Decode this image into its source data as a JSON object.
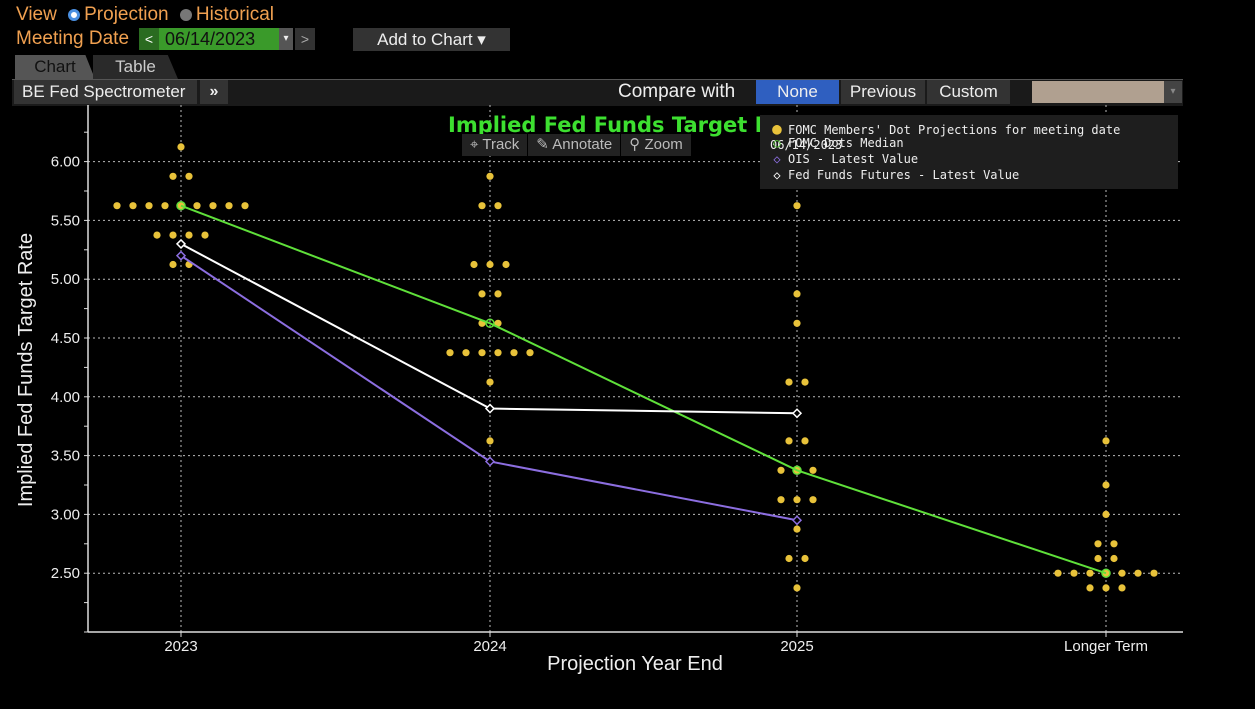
{
  "header": {
    "view_label": "View",
    "projection_label": "Projection",
    "historical_label": "Historical",
    "meeting_date_label": "Meeting Date",
    "meeting_date_value": "06/14/2023",
    "prev_icon": "<",
    "next_icon": ">",
    "add_to_chart_label": "Add to Chart ▾"
  },
  "tabs": [
    "Chart",
    "Table"
  ],
  "toolbar": {
    "spectrometer_label": "BE Fed Spectrometer",
    "more_icon": "»",
    "compare_label": "Compare with",
    "compare_options": [
      "None",
      "Previous",
      "Custom"
    ],
    "selected_compare": "None"
  },
  "chart_tools": [
    "Track",
    "Annotate",
    "Zoom"
  ],
  "legend": [
    {
      "label": "FOMC Members' Dot Projections for meeting date 06/14/2023",
      "marker": "dot",
      "color": "#e8c23a"
    },
    {
      "label": "FOMC Dots Median",
      "marker": "circle",
      "color": "#5fe03a"
    },
    {
      "label": "OIS - Latest Value",
      "marker": "diamond",
      "color": "#8c6ee0"
    },
    {
      "label": "Fed Funds Futures - Latest Value",
      "marker": "diamond",
      "color": "#ffffff"
    }
  ],
  "colors": {
    "dots": "#e8c23a",
    "median": "#5fe03a",
    "ois": "#8c6ee0",
    "futures": "#ffffff",
    "title": "#3de030"
  },
  "chart_data": {
    "type": "scatter",
    "title": "Implied Fed Funds Target Rate",
    "xlabel": "Projection Year End",
    "ylabel": "Implied Fed Funds Target Rate",
    "categories": [
      "2023",
      "2024",
      "2025",
      "Longer Term"
    ],
    "ylim": [
      2.0,
      6.5
    ],
    "yticks": [
      "2.50",
      "3.00",
      "3.50",
      "4.00",
      "4.50",
      "5.00",
      "5.50",
      "6.00"
    ],
    "grid": true,
    "legend_position": "top-right",
    "dots": [
      {
        "category": "2023",
        "counts": [
          {
            "y": 6.125,
            "n": 1
          },
          {
            "y": 5.875,
            "n": 2
          },
          {
            "y": 5.625,
            "n": 9
          },
          {
            "y": 5.375,
            "n": 4
          },
          {
            "y": 5.125,
            "n": 2
          }
        ]
      },
      {
        "category": "2024",
        "counts": [
          {
            "y": 5.875,
            "n": 1
          },
          {
            "y": 5.625,
            "n": 2
          },
          {
            "y": 5.125,
            "n": 3
          },
          {
            "y": 4.875,
            "n": 2
          },
          {
            "y": 4.625,
            "n": 2
          },
          {
            "y": 4.375,
            "n": 6
          },
          {
            "y": 4.125,
            "n": 1
          },
          {
            "y": 3.625,
            "n": 1
          }
        ]
      },
      {
        "category": "2025",
        "counts": [
          {
            "y": 5.625,
            "n": 1
          },
          {
            "y": 4.875,
            "n": 1
          },
          {
            "y": 4.625,
            "n": 1
          },
          {
            "y": 4.125,
            "n": 2
          },
          {
            "y": 3.625,
            "n": 2
          },
          {
            "y": 3.375,
            "n": 3
          },
          {
            "y": 3.125,
            "n": 3
          },
          {
            "y": 2.875,
            "n": 1
          },
          {
            "y": 2.625,
            "n": 2
          },
          {
            "y": 2.375,
            "n": 1
          }
        ]
      },
      {
        "category": "Longer Term",
        "counts": [
          {
            "y": 3.625,
            "n": 1
          },
          {
            "y": 3.25,
            "n": 1
          },
          {
            "y": 3.0,
            "n": 1
          },
          {
            "y": 2.75,
            "n": 2
          },
          {
            "y": 2.625,
            "n": 2
          },
          {
            "y": 2.5,
            "n": 7
          },
          {
            "y": 2.375,
            "n": 3
          }
        ]
      }
    ],
    "series": [
      {
        "name": "FOMC Dots Median",
        "values": [
          5.625,
          4.625,
          3.375,
          2.5
        ]
      },
      {
        "name": "OIS - Latest Value",
        "values": [
          5.2,
          3.45,
          2.95,
          null
        ]
      },
      {
        "name": "Fed Funds Futures - Latest Value",
        "values": [
          5.3,
          3.9,
          3.86,
          null
        ]
      }
    ]
  }
}
